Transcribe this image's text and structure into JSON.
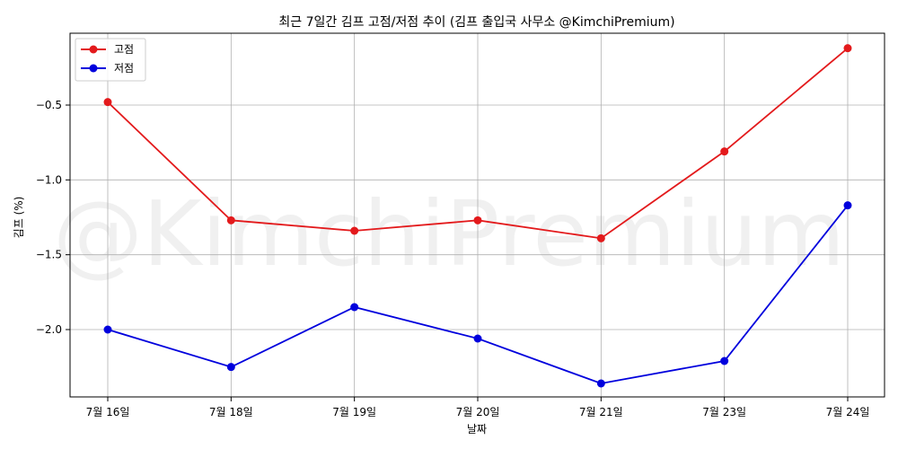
{
  "watermark": "@KimchiPremium",
  "chart_data": {
    "type": "line",
    "title": "최근 7일간 김프 고점/저점 추이 (김프 출입국 사무소 @KimchiPremium)",
    "xlabel": "날짜",
    "ylabel": "김프 (%)",
    "categories": [
      "7월 16일",
      "7월 18일",
      "7월 19일",
      "7월 20일",
      "7월 21일",
      "7월 23일",
      "7월 24일"
    ],
    "yticks": [
      -0.5,
      -1.0,
      -1.5,
      -2.0
    ],
    "ytick_labels": [
      "−0.5",
      "−1.0",
      "−1.5",
      "−2.0"
    ],
    "ylim": [
      -2.45,
      -0.02
    ],
    "grid": true,
    "legend_position": "top-left",
    "series": [
      {
        "name": "고점",
        "color": "#e31a1c",
        "values": [
          -0.48,
          -1.27,
          -1.34,
          -1.27,
          -1.39,
          -0.81,
          -0.12
        ]
      },
      {
        "name": "저점",
        "color": "#0000dd",
        "values": [
          -2.0,
          -2.25,
          -1.85,
          -2.06,
          -2.36,
          -2.21,
          -1.17
        ]
      }
    ]
  }
}
